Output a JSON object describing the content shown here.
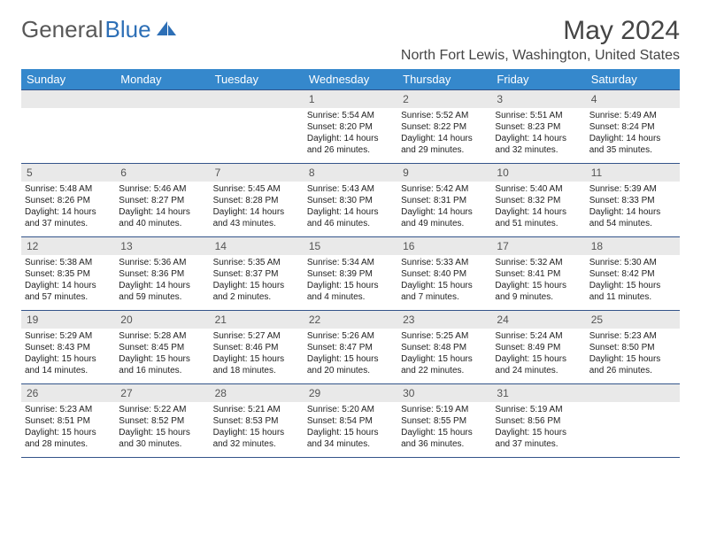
{
  "logo": {
    "text_general": "General",
    "text_blue": "Blue",
    "icon_color": "#2d6fb6"
  },
  "title": "May 2024",
  "location": "North Fort Lewis, Washington, United States",
  "colors": {
    "header_bg": "#3588cc",
    "header_fg": "#ffffff",
    "date_band_bg": "#e9e9e9",
    "week_border": "#34548a",
    "text": "#333333"
  },
  "weekday_labels": [
    "Sunday",
    "Monday",
    "Tuesday",
    "Wednesday",
    "Thursday",
    "Friday",
    "Saturday"
  ],
  "weeks": [
    [
      {
        "date": "",
        "lines": [
          "",
          "",
          "",
          ""
        ]
      },
      {
        "date": "",
        "lines": [
          "",
          "",
          "",
          ""
        ]
      },
      {
        "date": "",
        "lines": [
          "",
          "",
          "",
          ""
        ]
      },
      {
        "date": "1",
        "lines": [
          "Sunrise: 5:54 AM",
          "Sunset: 8:20 PM",
          "Daylight: 14 hours",
          "and 26 minutes."
        ]
      },
      {
        "date": "2",
        "lines": [
          "Sunrise: 5:52 AM",
          "Sunset: 8:22 PM",
          "Daylight: 14 hours",
          "and 29 minutes."
        ]
      },
      {
        "date": "3",
        "lines": [
          "Sunrise: 5:51 AM",
          "Sunset: 8:23 PM",
          "Daylight: 14 hours",
          "and 32 minutes."
        ]
      },
      {
        "date": "4",
        "lines": [
          "Sunrise: 5:49 AM",
          "Sunset: 8:24 PM",
          "Daylight: 14 hours",
          "and 35 minutes."
        ]
      }
    ],
    [
      {
        "date": "5",
        "lines": [
          "Sunrise: 5:48 AM",
          "Sunset: 8:26 PM",
          "Daylight: 14 hours",
          "and 37 minutes."
        ]
      },
      {
        "date": "6",
        "lines": [
          "Sunrise: 5:46 AM",
          "Sunset: 8:27 PM",
          "Daylight: 14 hours",
          "and 40 minutes."
        ]
      },
      {
        "date": "7",
        "lines": [
          "Sunrise: 5:45 AM",
          "Sunset: 8:28 PM",
          "Daylight: 14 hours",
          "and 43 minutes."
        ]
      },
      {
        "date": "8",
        "lines": [
          "Sunrise: 5:43 AM",
          "Sunset: 8:30 PM",
          "Daylight: 14 hours",
          "and 46 minutes."
        ]
      },
      {
        "date": "9",
        "lines": [
          "Sunrise: 5:42 AM",
          "Sunset: 8:31 PM",
          "Daylight: 14 hours",
          "and 49 minutes."
        ]
      },
      {
        "date": "10",
        "lines": [
          "Sunrise: 5:40 AM",
          "Sunset: 8:32 PM",
          "Daylight: 14 hours",
          "and 51 minutes."
        ]
      },
      {
        "date": "11",
        "lines": [
          "Sunrise: 5:39 AM",
          "Sunset: 8:33 PM",
          "Daylight: 14 hours",
          "and 54 minutes."
        ]
      }
    ],
    [
      {
        "date": "12",
        "lines": [
          "Sunrise: 5:38 AM",
          "Sunset: 8:35 PM",
          "Daylight: 14 hours",
          "and 57 minutes."
        ]
      },
      {
        "date": "13",
        "lines": [
          "Sunrise: 5:36 AM",
          "Sunset: 8:36 PM",
          "Daylight: 14 hours",
          "and 59 minutes."
        ]
      },
      {
        "date": "14",
        "lines": [
          "Sunrise: 5:35 AM",
          "Sunset: 8:37 PM",
          "Daylight: 15 hours",
          "and 2 minutes."
        ]
      },
      {
        "date": "15",
        "lines": [
          "Sunrise: 5:34 AM",
          "Sunset: 8:39 PM",
          "Daylight: 15 hours",
          "and 4 minutes."
        ]
      },
      {
        "date": "16",
        "lines": [
          "Sunrise: 5:33 AM",
          "Sunset: 8:40 PM",
          "Daylight: 15 hours",
          "and 7 minutes."
        ]
      },
      {
        "date": "17",
        "lines": [
          "Sunrise: 5:32 AM",
          "Sunset: 8:41 PM",
          "Daylight: 15 hours",
          "and 9 minutes."
        ]
      },
      {
        "date": "18",
        "lines": [
          "Sunrise: 5:30 AM",
          "Sunset: 8:42 PM",
          "Daylight: 15 hours",
          "and 11 minutes."
        ]
      }
    ],
    [
      {
        "date": "19",
        "lines": [
          "Sunrise: 5:29 AM",
          "Sunset: 8:43 PM",
          "Daylight: 15 hours",
          "and 14 minutes."
        ]
      },
      {
        "date": "20",
        "lines": [
          "Sunrise: 5:28 AM",
          "Sunset: 8:45 PM",
          "Daylight: 15 hours",
          "and 16 minutes."
        ]
      },
      {
        "date": "21",
        "lines": [
          "Sunrise: 5:27 AM",
          "Sunset: 8:46 PM",
          "Daylight: 15 hours",
          "and 18 minutes."
        ]
      },
      {
        "date": "22",
        "lines": [
          "Sunrise: 5:26 AM",
          "Sunset: 8:47 PM",
          "Daylight: 15 hours",
          "and 20 minutes."
        ]
      },
      {
        "date": "23",
        "lines": [
          "Sunrise: 5:25 AM",
          "Sunset: 8:48 PM",
          "Daylight: 15 hours",
          "and 22 minutes."
        ]
      },
      {
        "date": "24",
        "lines": [
          "Sunrise: 5:24 AM",
          "Sunset: 8:49 PM",
          "Daylight: 15 hours",
          "and 24 minutes."
        ]
      },
      {
        "date": "25",
        "lines": [
          "Sunrise: 5:23 AM",
          "Sunset: 8:50 PM",
          "Daylight: 15 hours",
          "and 26 minutes."
        ]
      }
    ],
    [
      {
        "date": "26",
        "lines": [
          "Sunrise: 5:23 AM",
          "Sunset: 8:51 PM",
          "Daylight: 15 hours",
          "and 28 minutes."
        ]
      },
      {
        "date": "27",
        "lines": [
          "Sunrise: 5:22 AM",
          "Sunset: 8:52 PM",
          "Daylight: 15 hours",
          "and 30 minutes."
        ]
      },
      {
        "date": "28",
        "lines": [
          "Sunrise: 5:21 AM",
          "Sunset: 8:53 PM",
          "Daylight: 15 hours",
          "and 32 minutes."
        ]
      },
      {
        "date": "29",
        "lines": [
          "Sunrise: 5:20 AM",
          "Sunset: 8:54 PM",
          "Daylight: 15 hours",
          "and 34 minutes."
        ]
      },
      {
        "date": "30",
        "lines": [
          "Sunrise: 5:19 AM",
          "Sunset: 8:55 PM",
          "Daylight: 15 hours",
          "and 36 minutes."
        ]
      },
      {
        "date": "31",
        "lines": [
          "Sunrise: 5:19 AM",
          "Sunset: 8:56 PM",
          "Daylight: 15 hours",
          "and 37 minutes."
        ]
      },
      {
        "date": "",
        "lines": [
          "",
          "",
          "",
          ""
        ]
      }
    ]
  ]
}
